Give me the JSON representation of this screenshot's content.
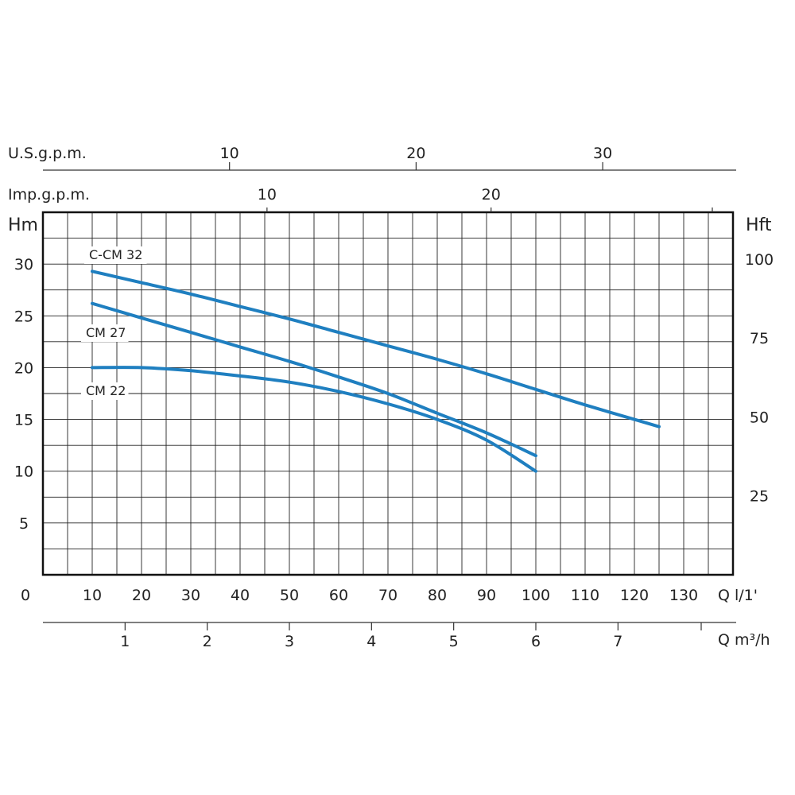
{
  "chart_data": {
    "type": "line",
    "axes": {
      "left": {
        "label": "Hm",
        "ticks": [
          5,
          10,
          15,
          20,
          25,
          30
        ],
        "range": [
          0,
          35
        ]
      },
      "right": {
        "label": "Hft",
        "ticks": [
          25,
          50,
          75,
          100
        ]
      },
      "bottom_lpm": {
        "label": "Q  l/1'",
        "origin_label": "0",
        "ticks": [
          10,
          20,
          30,
          40,
          50,
          60,
          70,
          80,
          90,
          100,
          110,
          120,
          130
        ],
        "range": [
          0,
          140
        ]
      },
      "bottom_m3h": {
        "label": "Q  m³/h",
        "ticks": [
          1,
          2,
          3,
          4,
          5,
          6,
          7
        ]
      },
      "top_usgpm": {
        "label": "U.S.g.p.m.",
        "ticks": [
          10,
          20,
          30
        ]
      },
      "top_impgpm": {
        "label": "Imp.g.p.m.",
        "ticks": [
          10,
          20
        ]
      }
    },
    "grid": true,
    "series": [
      {
        "name": "C-CM 32",
        "color": "#1f7fc0",
        "x": [
          10,
          20,
          30,
          40,
          50,
          60,
          70,
          80,
          90,
          100,
          110,
          120,
          125
        ],
        "y": [
          29.3,
          28.2,
          27.1,
          25.9,
          24.7,
          23.4,
          22.1,
          20.8,
          19.4,
          17.9,
          16.4,
          15.0,
          14.3
        ]
      },
      {
        "name": "CM 27",
        "color": "#1f7fc0",
        "x": [
          10,
          20,
          30,
          40,
          50,
          60,
          70,
          80,
          90,
          100
        ],
        "y": [
          26.2,
          24.8,
          23.4,
          22.0,
          20.6,
          19.1,
          17.5,
          15.6,
          13.7,
          11.5
        ]
      },
      {
        "name": "CM 22",
        "color": "#1f7fc0",
        "x": [
          10,
          20,
          30,
          40,
          50,
          60,
          70,
          80,
          90,
          100
        ],
        "y": [
          20.0,
          20.0,
          19.7,
          19.2,
          18.6,
          17.7,
          16.5,
          15.0,
          13.0,
          10.0
        ]
      }
    ]
  }
}
